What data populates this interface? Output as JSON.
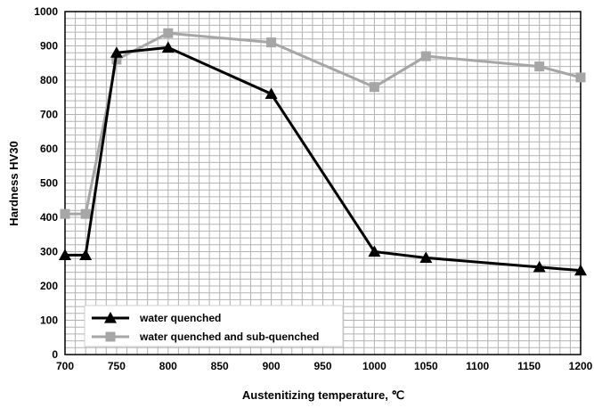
{
  "chart_data": {
    "type": "line",
    "xlabel": "Austenitizing temperature, ℃",
    "ylabel": "Hardness HV30",
    "xlim": [
      700,
      1200
    ],
    "ylim": [
      0,
      1000
    ],
    "x_ticks": [
      700,
      750,
      800,
      850,
      900,
      950,
      1000,
      1050,
      1100,
      1150,
      1200
    ],
    "y_ticks": [
      0,
      100,
      200,
      300,
      400,
      500,
      600,
      700,
      800,
      900,
      1000
    ],
    "grid": true,
    "legend_position": "bottom-left",
    "series": [
      {
        "name": "water quenched",
        "color": "#000000",
        "marker": "triangle",
        "x": [
          700,
          720,
          750,
          800,
          900,
          1000,
          1050,
          1160,
          1200
        ],
        "y": [
          290,
          290,
          880,
          895,
          760,
          300,
          282,
          255,
          245
        ]
      },
      {
        "name": "water quenched and sub-quenched",
        "color": "#a6a6a6",
        "marker": "square",
        "x": [
          700,
          720,
          750,
          800,
          900,
          1000,
          1050,
          1160,
          1200
        ],
        "y": [
          410,
          410,
          860,
          937,
          910,
          780,
          870,
          840,
          808
        ]
      }
    ]
  }
}
